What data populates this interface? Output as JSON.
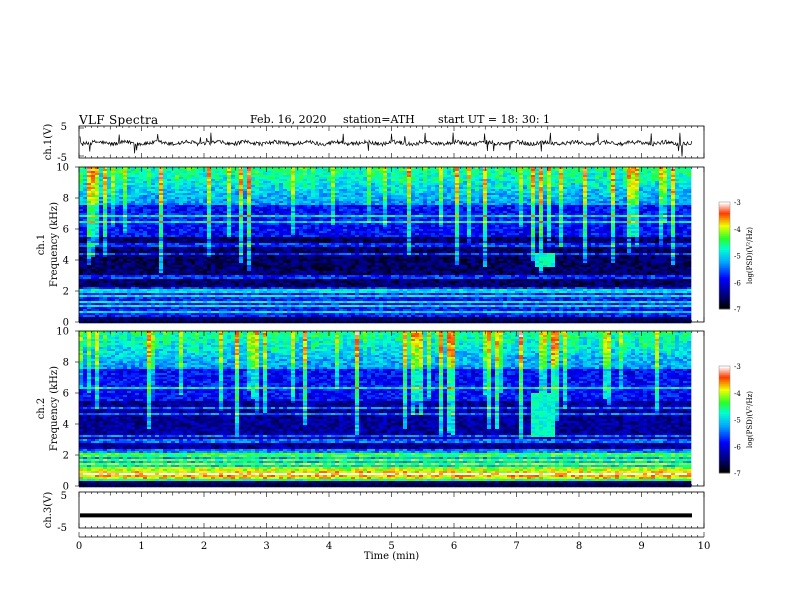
{
  "header": {
    "title": "VLF Spectra",
    "date": "Feb. 16, 2020",
    "station": "station=ATH",
    "start": "start UT =   18: 30: 1"
  },
  "chart_data": [
    {
      "type": "line",
      "name": "ch1-waveform",
      "ylabel": "ch.1(V)",
      "yticks": [
        "5",
        "-5"
      ],
      "ylim": [
        -5,
        5
      ],
      "xlim": [
        0,
        10
      ],
      "description_values": {
        "baseline": 0,
        "noise_amplitude": 1,
        "spike_amplitude": 3
      },
      "line_color": "#000000"
    },
    {
      "type": "heatmap",
      "name": "ch1-spectrogram",
      "ylabel": "ch.1\nFrequency (kHz)",
      "ylabel_lines": [
        "ch.1",
        "Frequency (kHz)"
      ],
      "yticks": [
        "0",
        "2",
        "4",
        "6",
        "8",
        "10"
      ],
      "ylim": [
        0,
        10
      ],
      "xlim": [
        0,
        9.8
      ],
      "colorbar": {
        "label": "log(PSD)(V²/Hz)",
        "ticks": [
          "-3",
          "-4",
          "-5",
          "-6",
          "-7"
        ],
        "range": [
          -7,
          -3
        ]
      },
      "features": [
        {
          "kind": "burst",
          "t_start": 7.3,
          "t_end": 7.6,
          "f_low": 3.5,
          "f_high": 4.4
        }
      ]
    },
    {
      "type": "heatmap",
      "name": "ch2-spectrogram",
      "ylabel": "ch.2\nFrequency (kHz)",
      "ylabel_lines": [
        "ch.2",
        "Frequency (kHz)"
      ],
      "yticks": [
        "0",
        "2",
        "4",
        "6",
        "8",
        "10"
      ],
      "ylim": [
        0,
        10
      ],
      "xlim": [
        0,
        9.8
      ],
      "colorbar": {
        "label": "log(PSD)(V²/Hz)",
        "ticks": [
          "-3",
          "-4",
          "-5",
          "-6",
          "-7"
        ],
        "range": [
          -7,
          -3
        ]
      },
      "features": [
        {
          "kind": "burst",
          "t_start": 7.2,
          "t_end": 7.6,
          "f_low": 3.2,
          "f_high": 6.0
        }
      ]
    },
    {
      "type": "line",
      "name": "ch3-waveform",
      "ylabel": "ch.3(V)",
      "yticks": [
        "5",
        "-5"
      ],
      "ylim": [
        -5,
        5
      ],
      "xlim": [
        0,
        10
      ],
      "description_values": {
        "baseline": -1.5
      },
      "line_color": "#000000"
    }
  ],
  "x_axis": {
    "label": "Time (min)",
    "ticks": [
      "0",
      "1",
      "2",
      "3",
      "4",
      "5",
      "6",
      "7",
      "8",
      "9",
      "10"
    ],
    "range": [
      0,
      10
    ]
  }
}
